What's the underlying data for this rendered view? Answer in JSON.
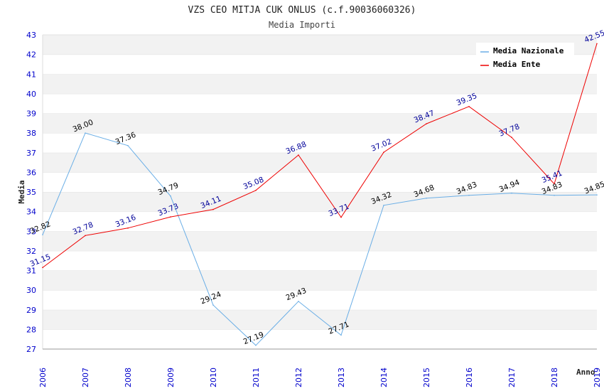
{
  "chart_data": {
    "type": "line",
    "title": "VZS CEO MITJA CUK ONLUS (c.f.90036060326)",
    "subtitle": "Media Importi",
    "xlabel": "Anno",
    "ylabel": "Media",
    "ylim": [
      27,
      43
    ],
    "x": [
      "2006",
      "2007",
      "2008",
      "2009",
      "2010",
      "2011",
      "2012",
      "2013",
      "2014",
      "2015",
      "2016",
      "2017",
      "2018",
      "2019"
    ],
    "series": [
      {
        "name": "Media Nazionale",
        "color": "#6aaee6",
        "label_color": "#000000",
        "values": [
          32.82,
          38.0,
          37.36,
          34.79,
          29.24,
          27.19,
          29.43,
          27.71,
          34.32,
          34.68,
          34.83,
          34.94,
          34.83,
          34.85
        ],
        "labels": [
          "32.82",
          "38.00",
          "37.36",
          "34.79",
          "29.24",
          "27.19",
          "29.43",
          "27.71",
          "34.32",
          "34.68",
          "34.83",
          "34.94",
          "34.83",
          "34.85"
        ]
      },
      {
        "name": "Media Ente",
        "color": "#ee0000",
        "label_color": "#000099",
        "values": [
          31.15,
          32.78,
          33.16,
          33.73,
          34.11,
          35.08,
          36.88,
          33.71,
          37.02,
          38.47,
          39.35,
          37.78,
          35.41,
          42.55
        ],
        "labels": [
          "31.15",
          "32.78",
          "33.16",
          "33.73",
          "34.11",
          "35.08",
          "36.88",
          "33.71",
          "37.02",
          "38.47",
          "39.35",
          "37.78",
          "35.41",
          "42.55"
        ]
      }
    ],
    "legend_position": "top-right",
    "grid": true
  }
}
